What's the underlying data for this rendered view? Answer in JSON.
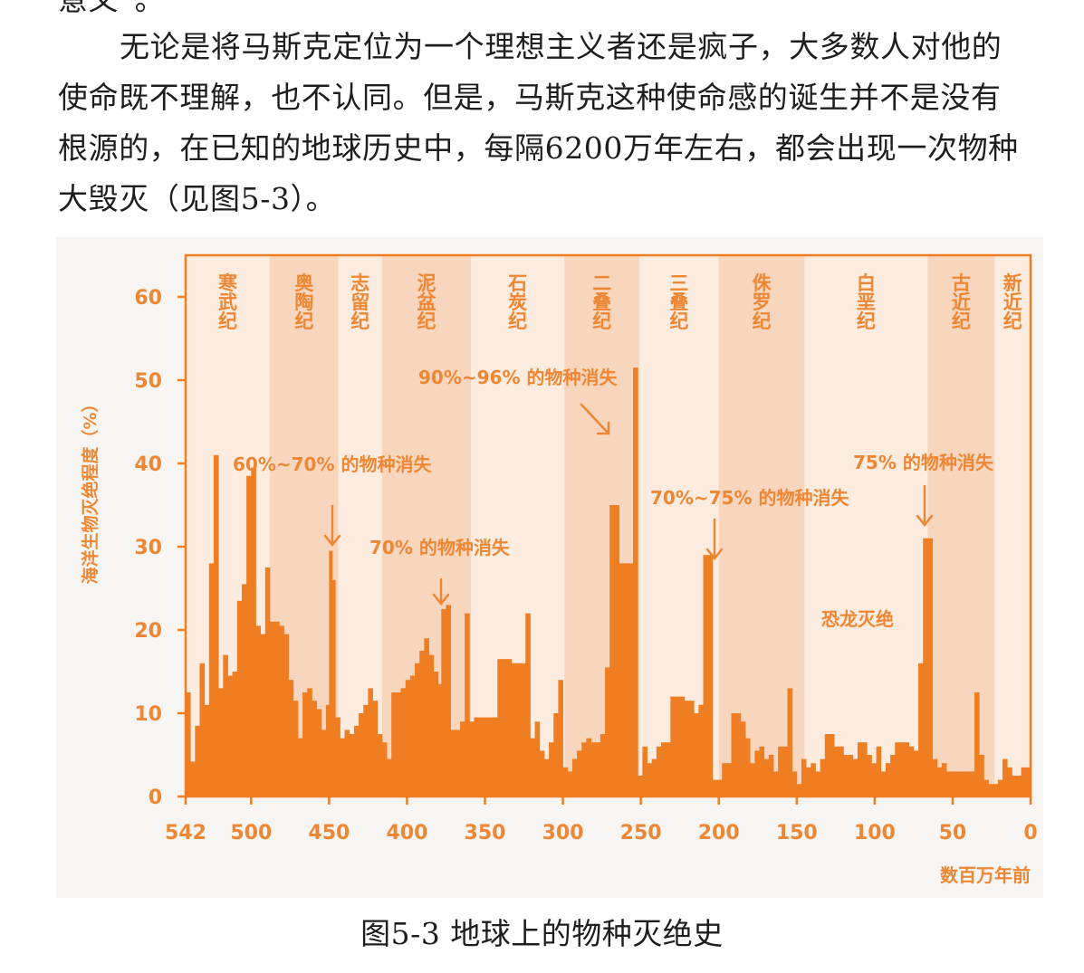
{
  "text": {
    "top_fragment": "意义”。",
    "lines": [
      "无论是将马斯克定位为一个理想主义者还是疯子，大多数人对他的",
      "使命既不理解，也不认同。但是，马斯克这种使命感的诞生并不是没有",
      "根源的，在已知的地球历史中，每隔6200万年左右，都会出现一次物种",
      "大毁灭（见图5-3）。"
    ],
    "caption": "图5-3 地球上的物种灭绝史"
  },
  "colors": {
    "bar": "#ef7d22",
    "band_dark": "#f8d5bd",
    "band_light": "#fcebdf",
    "panel": "#f6f5f3",
    "label": "#ed8734",
    "axis": "#ef7d22"
  },
  "chart_data": {
    "type": "bar",
    "title": "",
    "ylabel": "海洋生物灭绝程度（%）",
    "xlabel": "数百万年前",
    "xlim": [
      542,
      0
    ],
    "ylim": [
      0,
      65
    ],
    "x_ticks": [
      542,
      500,
      450,
      400,
      350,
      300,
      250,
      200,
      150,
      100,
      50,
      0
    ],
    "y_ticks": [
      0,
      10,
      20,
      30,
      40,
      50,
      60
    ],
    "periods": [
      {
        "name": "寒武纪",
        "start": 542,
        "end": 488
      },
      {
        "name": "奥陶纪",
        "start": 488,
        "end": 444
      },
      {
        "name": "志留纪",
        "start": 444,
        "end": 416
      },
      {
        "name": "泥盆纪",
        "start": 416,
        "end": 359
      },
      {
        "name": "石炭纪",
        "start": 359,
        "end": 299
      },
      {
        "name": "二叠纪",
        "start": 299,
        "end": 251
      },
      {
        "name": "三叠纪",
        "start": 251,
        "end": 200
      },
      {
        "name": "侏罗纪",
        "start": 200,
        "end": 145
      },
      {
        "name": "白垩纪",
        "start": 145,
        "end": 66
      },
      {
        "name": "古近纪",
        "start": 66,
        "end": 23
      },
      {
        "name": "新近纪",
        "start": 23,
        "end": 0
      }
    ],
    "annotations": [
      {
        "text": "60%~70% 的物种消失",
        "x": 450,
        "y": 30
      },
      {
        "text": "70% 的物种消失",
        "x": 375,
        "y": 23
      },
      {
        "text": "90%~96% 的物种消失",
        "x": 251,
        "y": 46
      },
      {
        "text": "70%~75% 的物种消失",
        "x": 200,
        "y": 29
      },
      {
        "text": "75% 的物种消失",
        "x": 66,
        "y": 31
      },
      {
        "text": "恐龙灭绝",
        "x": 66,
        "y": 22
      }
    ],
    "series": [
      {
        "values": [
          [
            542,
            12.5
          ],
          [
            539,
            4.2
          ],
          [
            536,
            8.5
          ],
          [
            533,
            16
          ],
          [
            530,
            11
          ],
          [
            527,
            28
          ],
          [
            524,
            41
          ],
          [
            521,
            13
          ],
          [
            518,
            17
          ],
          [
            515,
            14.5
          ],
          [
            512,
            15
          ],
          [
            509,
            23.5
          ],
          [
            506,
            25.5
          ],
          [
            503,
            38.5
          ],
          [
            500,
            39.5
          ],
          [
            497,
            20.5
          ],
          [
            494,
            19.5
          ],
          [
            491,
            27.5
          ],
          [
            488,
            21
          ],
          [
            485,
            21
          ],
          [
            482,
            20.5
          ],
          [
            479,
            19.5
          ],
          [
            476,
            14
          ],
          [
            473,
            11.5
          ],
          [
            470,
            7
          ],
          [
            467,
            12.5
          ],
          [
            464,
            13
          ],
          [
            461,
            11.5
          ],
          [
            458,
            10.5
          ],
          [
            455,
            8
          ],
          [
            452,
            11
          ],
          [
            450,
            29.5
          ],
          [
            448,
            26
          ],
          [
            446,
            9.5
          ],
          [
            443,
            7
          ],
          [
            440,
            8
          ],
          [
            437,
            7.5
          ],
          [
            434,
            8.5
          ],
          [
            431,
            10
          ],
          [
            428,
            11
          ],
          [
            425,
            13
          ],
          [
            422,
            11.5
          ],
          [
            419,
            7.5
          ],
          [
            416,
            6.5
          ],
          [
            413,
            4.5
          ],
          [
            410,
            12.5
          ],
          [
            407,
            12.5
          ],
          [
            404,
            13
          ],
          [
            401,
            14
          ],
          [
            398,
            14.5
          ],
          [
            395,
            16
          ],
          [
            392,
            17.5
          ],
          [
            389,
            19
          ],
          [
            386,
            17
          ],
          [
            383,
            15
          ],
          [
            380,
            13.5
          ],
          [
            378,
            22.5
          ],
          [
            375,
            23
          ],
          [
            372,
            8
          ],
          [
            369,
            8
          ],
          [
            366,
            9
          ],
          [
            363,
            22
          ],
          [
            360,
            9
          ],
          [
            357,
            9.5
          ],
          [
            354,
            9.5
          ],
          [
            351,
            9.5
          ],
          [
            348,
            9.5
          ],
          [
            345,
            9.5
          ],
          [
            342,
            16.5
          ],
          [
            339,
            16.5
          ],
          [
            336,
            16.5
          ],
          [
            333,
            16
          ],
          [
            330,
            16
          ],
          [
            327,
            16
          ],
          [
            324,
            22
          ],
          [
            321,
            7
          ],
          [
            318,
            9
          ],
          [
            315,
            5.5
          ],
          [
            312,
            4.5
          ],
          [
            309,
            6.5
          ],
          [
            306,
            10
          ],
          [
            303,
            14
          ],
          [
            300,
            3.5
          ],
          [
            297,
            3
          ],
          [
            294,
            4.5
          ],
          [
            291,
            5.5
          ],
          [
            288,
            6.5
          ],
          [
            285,
            7
          ],
          [
            282,
            6.5
          ],
          [
            279,
            6.5
          ],
          [
            276,
            7.5
          ],
          [
            273,
            15.5
          ],
          [
            270,
            35
          ],
          [
            267,
            35
          ],
          [
            264,
            28
          ],
          [
            261,
            28
          ],
          [
            258,
            28
          ],
          [
            255,
            51.5
          ],
          [
            252,
            2.5
          ],
          [
            249,
            6
          ],
          [
            246,
            4
          ],
          [
            243,
            4.5
          ],
          [
            240,
            6
          ],
          [
            237,
            6.5
          ],
          [
            234,
            6.5
          ],
          [
            231,
            12
          ],
          [
            228,
            12
          ],
          [
            225,
            12
          ],
          [
            222,
            11.5
          ],
          [
            219,
            11.5
          ],
          [
            216,
            10
          ],
          [
            213,
            11
          ],
          [
            210,
            29
          ],
          [
            207,
            29
          ],
          [
            204,
            2
          ],
          [
            201,
            2
          ],
          [
            198,
            4
          ],
          [
            195,
            4
          ],
          [
            192,
            10
          ],
          [
            189,
            10
          ],
          [
            186,
            9
          ],
          [
            183,
            7
          ],
          [
            180,
            4
          ],
          [
            177,
            5.5
          ],
          [
            174,
            6
          ],
          [
            171,
            4.5
          ],
          [
            168,
            5
          ],
          [
            165,
            3
          ],
          [
            162,
            6
          ],
          [
            159,
            6
          ],
          [
            156,
            13
          ],
          [
            153,
            3
          ],
          [
            150,
            1.5
          ],
          [
            147,
            4.5
          ],
          [
            144,
            3.5
          ],
          [
            141,
            4
          ],
          [
            138,
            3
          ],
          [
            135,
            4.5
          ],
          [
            132,
            7.5
          ],
          [
            129,
            7.5
          ],
          [
            126,
            6
          ],
          [
            123,
            6
          ],
          [
            120,
            5
          ],
          [
            117,
            5
          ],
          [
            114,
            4.5
          ],
          [
            111,
            6.5
          ],
          [
            108,
            6.5
          ],
          [
            105,
            5
          ],
          [
            102,
            4
          ],
          [
            99,
            6
          ],
          [
            96,
            3
          ],
          [
            93,
            4
          ],
          [
            90,
            5
          ],
          [
            87,
            6.5
          ],
          [
            84,
            6.5
          ],
          [
            81,
            6.5
          ],
          [
            78,
            6
          ],
          [
            75,
            5.5
          ],
          [
            72,
            16
          ],
          [
            69,
            31
          ],
          [
            66,
            31
          ],
          [
            63,
            4.5
          ],
          [
            60,
            3.5
          ],
          [
            57,
            4
          ],
          [
            54,
            3
          ],
          [
            51,
            3
          ],
          [
            48,
            3
          ],
          [
            45,
            3
          ],
          [
            42,
            3
          ],
          [
            39,
            3
          ],
          [
            36,
            12.5
          ],
          [
            33,
            5
          ],
          [
            30,
            2
          ],
          [
            27,
            1.5
          ],
          [
            24,
            1.5
          ],
          [
            21,
            2
          ],
          [
            18,
            4.5
          ],
          [
            15,
            3.5
          ],
          [
            12,
            2.5
          ],
          [
            9,
            2.5
          ],
          [
            6,
            3.5
          ],
          [
            3,
            3.5
          ]
        ]
      }
    ]
  }
}
